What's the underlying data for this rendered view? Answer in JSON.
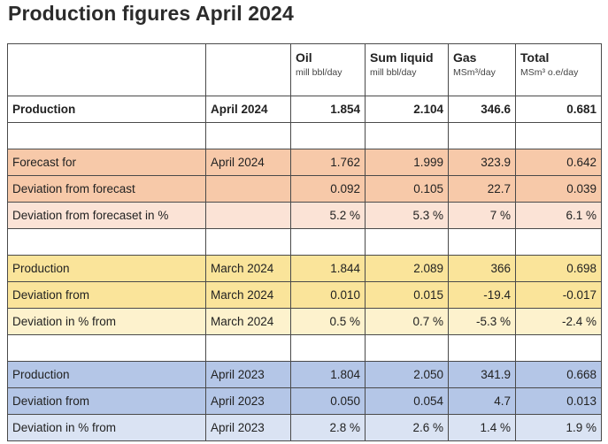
{
  "title": "Production figures April 2024",
  "headers": [
    {
      "name": "Oil",
      "unit": "mill bbl/day"
    },
    {
      "name": "Sum liquid",
      "unit": "mill bbl/day"
    },
    {
      "name": "Gas",
      "unit": "MSm³/day"
    },
    {
      "name": "Total",
      "unit": "MSm³ o.e/day"
    }
  ],
  "rows": [
    {
      "label": "Production",
      "period": "April 2024",
      "values": [
        "1.854",
        "2.104",
        "346.6",
        "0.681"
      ]
    },
    {
      "label": "Forecast for",
      "period": "April 2024",
      "values": [
        "1.762",
        "1.999",
        "323.9",
        "0.642"
      ]
    },
    {
      "label": "Deviation from forecast",
      "period": "",
      "values": [
        "0.092",
        "0.105",
        "22.7",
        "0.039"
      ]
    },
    {
      "label": "Deviation from forecaset in %",
      "period": "",
      "values": [
        "5.2 %",
        "5.3 %",
        "7 %",
        "6.1 %"
      ]
    },
    {
      "label": "Production",
      "period": "March 2024",
      "values": [
        "1.844",
        "2.089",
        "366",
        "0.698"
      ]
    },
    {
      "label": "Deviation from",
      "period": "March 2024",
      "values": [
        "0.010",
        "0.015",
        "-19.4",
        "-0.017"
      ]
    },
    {
      "label": "Deviation in % from",
      "period": "March 2024",
      "values": [
        "0.5 %",
        "0.7 %",
        "-5.3 %",
        "-2.4 %"
      ]
    },
    {
      "label": "Production",
      "period": "April 2023",
      "values": [
        "1.804",
        "2.050",
        "341.9",
        "0.668"
      ]
    },
    {
      "label": "Deviation from",
      "period": "April 2023",
      "values": [
        "0.050",
        "0.054",
        "4.7",
        "0.013"
      ]
    },
    {
      "label": "Deviation in % from",
      "period": "April 2023",
      "values": [
        "2.8 %",
        "2.6 %",
        "1.4 %",
        "1.9 %"
      ]
    }
  ],
  "colors": {
    "forecast_dark": "#f7c9a9",
    "forecast_light": "#fbe3d6",
    "march_dark": "#fae49a",
    "march_light": "#fdf2cd",
    "lastyear_dark": "#b4c6e7",
    "lastyear_light": "#dae3f3"
  }
}
